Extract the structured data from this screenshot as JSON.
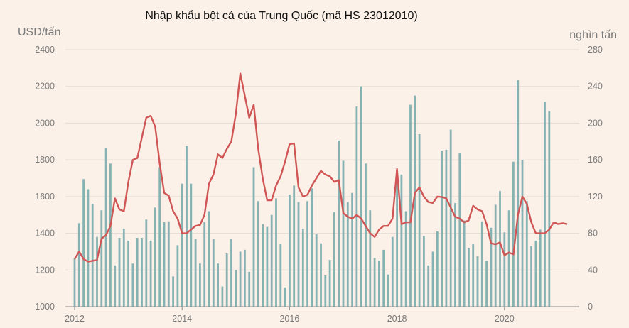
{
  "chart_data": {
    "type": "bar+line",
    "title": "Nhập khẩu bột cá của Trung Quốc (mã HS 23012010)",
    "y_left_label": "USD/tấn",
    "y_right_label": "nghìn tấn",
    "y_left_lim": [
      1000,
      2400
    ],
    "y_right_lim": [
      0,
      280
    ],
    "y_left_ticks": [
      1000,
      1200,
      1400,
      1600,
      1800,
      2000,
      2200,
      2400
    ],
    "y_right_ticks": [
      0,
      40,
      80,
      120,
      160,
      200,
      240,
      280
    ],
    "x_tick_labels": [
      "2012",
      "2014",
      "2016",
      "2018",
      "2020"
    ],
    "x_start": "2012-01",
    "grid": "horizontal",
    "colors": {
      "bars": "#86b2b3",
      "line": "#d05656",
      "background": "#fbf1e8"
    },
    "series": [
      {
        "name": "nghìn tấn",
        "type": "bar",
        "axis": "right",
        "values": [
          53,
          91,
          139,
          128,
          112,
          76,
          105,
          173,
          156,
          45,
          75,
          85,
          72,
          47,
          75,
          75,
          95,
          72,
          108,
          152,
          92,
          93,
          33,
          67,
          134,
          175,
          134,
          74,
          47,
          92,
          104,
          74,
          47,
          22,
          58,
          74,
          40,
          60,
          62,
          38,
          152,
          115,
          90,
          87,
          100,
          118,
          68,
          21,
          122,
          132,
          114,
          85,
          115,
          129,
          79,
          69,
          34,
          51,
          103,
          181,
          159,
          114,
          124,
          218,
          240,
          156,
          105,
          53,
          50,
          62,
          35,
          76,
          149,
          144,
          104,
          220,
          230,
          188,
          77,
          45,
          60,
          82,
          170,
          171,
          193,
          113,
          167,
          94,
          64,
          68,
          55,
          93,
          50,
          86,
          111,
          126,
          81,
          105,
          158,
          247,
          160,
          115,
          66,
          72,
          84,
          223,
          213
        ]
      },
      {
        "name": "USD/tấn",
        "type": "line",
        "axis": "left",
        "values": [
          1260,
          1300,
          1260,
          1245,
          1250,
          1255,
          1370,
          1390,
          1440,
          1590,
          1530,
          1520,
          1680,
          1800,
          1810,
          1920,
          2030,
          2040,
          1980,
          1780,
          1620,
          1605,
          1520,
          1480,
          1400,
          1400,
          1420,
          1440,
          1445,
          1500,
          1670,
          1720,
          1830,
          1810,
          1860,
          1900,
          2050,
          2270,
          2150,
          2030,
          2100,
          1860,
          1700,
          1580,
          1580,
          1660,
          1710,
          1790,
          1885,
          1890,
          1650,
          1600,
          1610,
          1660,
          1700,
          1740,
          1720,
          1710,
          1680,
          1690,
          1510,
          1490,
          1480,
          1500,
          1480,
          1440,
          1400,
          1380,
          1420,
          1440,
          1440,
          1480,
          1750,
          1450,
          1460,
          1460,
          1620,
          1650,
          1600,
          1570,
          1565,
          1600,
          1598,
          1590,
          1540,
          1490,
          1480,
          1460,
          1470,
          1550,
          1530,
          1520,
          1450,
          1345,
          1340,
          1350,
          1280,
          1295,
          1285,
          1500,
          1600,
          1560,
          1460,
          1400,
          1400,
          1400,
          1420,
          1460,
          1450,
          1455,
          1450
        ]
      }
    ]
  }
}
